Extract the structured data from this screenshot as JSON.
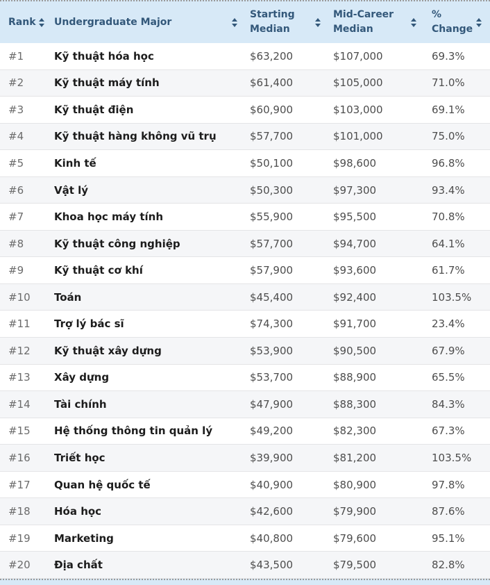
{
  "colors": {
    "header_background": "#d7e9f7",
    "header_text": "#33587a",
    "row_alt_background": "#f5f6f8",
    "row_border": "#e4e4e6",
    "major_text": "#1c1c1c",
    "value_text": "#4d4d4d",
    "rank_text": "#6b6b6b"
  },
  "table": {
    "columns": [
      {
        "label": "Rank"
      },
      {
        "label": "Undergraduate Major"
      },
      {
        "label": "Starting\nMedian"
      },
      {
        "label": "Mid-Career\nMedian"
      },
      {
        "label": "%\nChange"
      }
    ],
    "rows": [
      {
        "rank": "#1",
        "major": "Kỹ thuật hóa học",
        "starting_median": "$63,200",
        "mid_career_median": "$107,000",
        "percent_change": "69.3%"
      },
      {
        "rank": "#2",
        "major": "Kỹ thuật máy tính",
        "starting_median": "$61,400",
        "mid_career_median": "$105,000",
        "percent_change": "71.0%"
      },
      {
        "rank": "#3",
        "major": "Kỹ thuật điện",
        "starting_median": "$60,900",
        "mid_career_median": "$103,000",
        "percent_change": "69.1%"
      },
      {
        "rank": "#4",
        "major": "Kỹ thuật hàng không vũ trụ",
        "starting_median": "$57,700",
        "mid_career_median": "$101,000",
        "percent_change": "75.0%"
      },
      {
        "rank": "#5",
        "major": "Kinh tế",
        "starting_median": "$50,100",
        "mid_career_median": "$98,600",
        "percent_change": "96.8%"
      },
      {
        "rank": "#6",
        "major": "Vật lý",
        "starting_median": "$50,300",
        "mid_career_median": "$97,300",
        "percent_change": "93.4%"
      },
      {
        "rank": "#7",
        "major": "Khoa học máy tính",
        "starting_median": "$55,900",
        "mid_career_median": "$95,500",
        "percent_change": "70.8%"
      },
      {
        "rank": "#8",
        "major": "Kỹ thuật công nghiệp",
        "starting_median": "$57,700",
        "mid_career_median": "$94,700",
        "percent_change": "64.1%"
      },
      {
        "rank": "#9",
        "major": "Kỹ thuật cơ khí",
        "starting_median": "$57,900",
        "mid_career_median": "$93,600",
        "percent_change": "61.7%"
      },
      {
        "rank": "#10",
        "major": "Toán",
        "starting_median": "$45,400",
        "mid_career_median": "$92,400",
        "percent_change": "103.5%"
      },
      {
        "rank": "#11",
        "major": "Trợ lý bác sĩ",
        "starting_median": "$74,300",
        "mid_career_median": "$91,700",
        "percent_change": "23.4%"
      },
      {
        "rank": "#12",
        "major": "Kỹ thuật xây dựng",
        "starting_median": "$53,900",
        "mid_career_median": "$90,500",
        "percent_change": "67.9%"
      },
      {
        "rank": "#13",
        "major": "Xây dựng",
        "starting_median": "$53,700",
        "mid_career_median": "$88,900",
        "percent_change": "65.5%"
      },
      {
        "rank": "#14",
        "major": "Tài chính",
        "starting_median": "$47,900",
        "mid_career_median": "$88,300",
        "percent_change": "84.3%"
      },
      {
        "rank": "#15",
        "major": "Hệ thống thông tin quản lý",
        "starting_median": "$49,200",
        "mid_career_median": "$82,300",
        "percent_change": "67.3%"
      },
      {
        "rank": "#16",
        "major": "Triết học",
        "starting_median": "$39,900",
        "mid_career_median": "$81,200",
        "percent_change": "103.5%"
      },
      {
        "rank": "#17",
        "major": "Quan hệ quốc tế",
        "starting_median": "$40,900",
        "mid_career_median": "$80,900",
        "percent_change": "97.8%"
      },
      {
        "rank": "#18",
        "major": "Hóa học",
        "starting_median": "$42,600",
        "mid_career_median": "$79,900",
        "percent_change": "87.6%"
      },
      {
        "rank": "#19",
        "major": "Marketing",
        "starting_median": "$40,800",
        "mid_career_median": "$79,600",
        "percent_change": "95.1%"
      },
      {
        "rank": "#20",
        "major": "Địa chất",
        "starting_median": "$43,500",
        "mid_career_median": "$79,500",
        "percent_change": "82.8%"
      }
    ]
  }
}
